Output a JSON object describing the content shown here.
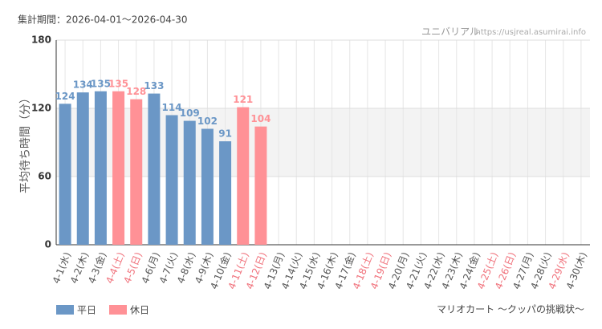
{
  "period": "集計期間：2026-04-01～2026-04-30",
  "site_name": "ユニバリアル",
  "site_url": "https://usjreal.asumirai.info",
  "attraction": "マリオカート ～クッパの挑戦状～",
  "chart_data": {
    "type": "bar",
    "y_label": "平均待ち時間（分）",
    "categories": [
      "4-1(水)",
      "4-2(木)",
      "4-3(金)",
      "4-4(土)",
      "4-5(日)",
      "4-6(月)",
      "4-7(火)",
      "4-8(水)",
      "4-9(木)",
      "4-10(金)",
      "4-11(土)",
      "4-12(日)",
      "4-13(月)",
      "4-14(火)",
      "4-15(水)",
      "4-16(木)",
      "4-17(金)",
      "4-18(土)",
      "4-19(日)",
      "4-20(月)",
      "4-21(火)",
      "4-22(水)",
      "4-23(木)",
      "4-24(金)",
      "4-25(土)",
      "4-26(日)",
      "4-27(月)",
      "4-28(火)",
      "4-29(水)",
      "4-30(木)"
    ],
    "category_colors": [
      "#555",
      "#555",
      "#555",
      "#f0707a",
      "#f0707a",
      "#555",
      "#555",
      "#555",
      "#555",
      "#555",
      "#f0707a",
      "#f0707a",
      "#555",
      "#555",
      "#555",
      "#555",
      "#555",
      "#f0707a",
      "#f0707a",
      "#555",
      "#555",
      "#555",
      "#555",
      "#555",
      "#f0707a",
      "#f0707a",
      "#555",
      "#555",
      "#f0707a",
      "#555"
    ],
    "series": [
      {
        "name": "平日",
        "color": "#6b97c6",
        "values": [
          124,
          134,
          135,
          null,
          null,
          133,
          114,
          109,
          102,
          91,
          null,
          null,
          null,
          null,
          null,
          null,
          null,
          null,
          null,
          null,
          null,
          null,
          null,
          null,
          null,
          null,
          null,
          null,
          null,
          null
        ]
      },
      {
        "name": "休日",
        "color": "#ff9196",
        "values": [
          null,
          null,
          null,
          135,
          128,
          null,
          null,
          null,
          null,
          null,
          121,
          104,
          null,
          null,
          null,
          null,
          null,
          null,
          null,
          null,
          null,
          null,
          null,
          null,
          null,
          null,
          null,
          null,
          null,
          null
        ]
      }
    ],
    "ylim": [
      0,
      180
    ],
    "yticks": [
      0,
      60,
      120,
      180
    ],
    "grid": true
  }
}
